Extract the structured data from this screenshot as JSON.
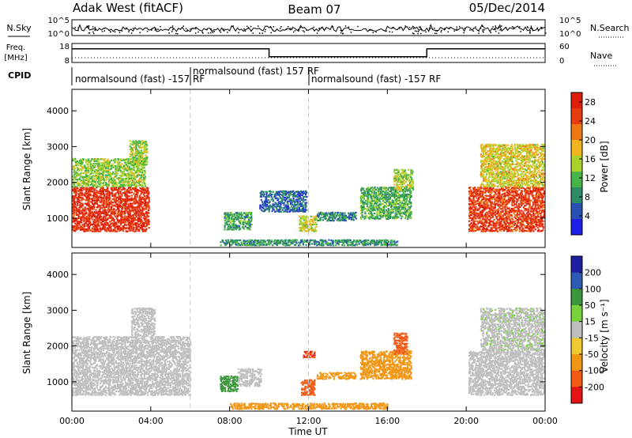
{
  "header": {
    "station": "Adak West (fitACF)",
    "beam": "Beam 07",
    "date": "05/Dec/2014"
  },
  "noise_panel": {
    "left_label": "N.Sky",
    "right_label": "N.Search",
    "left_ticks": [
      "10^5",
      "10^0"
    ],
    "right_ticks": [
      "10^5",
      "10^0"
    ]
  },
  "freq_panel": {
    "left_label_1": "Freq.",
    "left_label_2": "[MHz]",
    "right_label": "Nave",
    "left_ticks": [
      "18",
      "8"
    ],
    "right_ticks": [
      "60",
      "0"
    ],
    "freq_series": [
      {
        "from": "00:00",
        "to": "10:00",
        "level": 0.72
      },
      {
        "from": "10:00",
        "to": "18:00",
        "level": 0.3
      },
      {
        "from": "18:00",
        "to": "24:00",
        "level": 0.72
      }
    ]
  },
  "cpid_panel": {
    "label": "CPID",
    "segments": [
      {
        "text": "normalsound (fast) -157 RF",
        "row": "lower"
      },
      {
        "text": "normalsound (fast) 157 RF",
        "row": "upper"
      },
      {
        "text": "normalsound (fast) -157 RF",
        "row": "lower"
      }
    ]
  },
  "chart_data": [
    {
      "type": "heatmap",
      "title": "",
      "xlabel": "Time UT",
      "ylabel": "Slant Range [km]",
      "xlim": [
        "00:00",
        "24:00"
      ],
      "ylim": [
        180,
        4600
      ],
      "x_ticks": [
        "00:00",
        "04:00",
        "08:00",
        "12:00",
        "16:00",
        "20:00",
        "00:00"
      ],
      "y_ticks": [
        1000,
        2000,
        3000,
        4000
      ],
      "colorbar": {
        "label": "Power [dB]",
        "ticks": [
          "4",
          "8",
          "12",
          "16",
          "20",
          "24",
          "28"
        ],
        "range": [
          0,
          30
        ],
        "colors": [
          "#1e1ee6",
          "#2850b4",
          "#2d8c64",
          "#46b446",
          "#aad22d",
          "#f0b41e",
          "#f07814",
          "#e63c0f",
          "#dc1e0a"
        ]
      },
      "scatter_regions": [
        {
          "t0": 0.0,
          "t1": 3.9,
          "r0": 650,
          "r1": 1900,
          "power": 27
        },
        {
          "t0": 0.0,
          "t1": 3.7,
          "r0": 1900,
          "r1": 2700,
          "power": 14
        },
        {
          "t0": 2.9,
          "t1": 3.8,
          "r0": 2500,
          "r1": 3200,
          "power": 14
        },
        {
          "t0": 7.7,
          "t1": 9.1,
          "r0": 700,
          "r1": 1200,
          "power": 10
        },
        {
          "t0": 9.5,
          "t1": 11.9,
          "r0": 1200,
          "r1": 1800,
          "power": 6
        },
        {
          "t0": 11.5,
          "t1": 12.4,
          "r0": 650,
          "r1": 1100,
          "power": 16
        },
        {
          "t0": 12.4,
          "t1": 14.4,
          "r0": 950,
          "r1": 1200,
          "power": 8
        },
        {
          "t0": 14.6,
          "t1": 17.2,
          "r0": 1000,
          "r1": 1900,
          "power": 11
        },
        {
          "t0": 16.3,
          "t1": 17.3,
          "r0": 1800,
          "r1": 2400,
          "power": 15
        },
        {
          "t0": 20.1,
          "t1": 24.0,
          "r0": 650,
          "r1": 1900,
          "power": 26
        },
        {
          "t0": 20.7,
          "t1": 24.0,
          "r0": 1900,
          "r1": 3100,
          "power": 17
        },
        {
          "t0": 7.5,
          "t1": 16.5,
          "r0": 260,
          "r1": 430,
          "power": 9
        }
      ]
    },
    {
      "type": "heatmap",
      "title": "",
      "xlabel": "Time UT",
      "ylabel": "Slant Range [km]",
      "xlim": [
        "00:00",
        "24:00"
      ],
      "ylim": [
        180,
        4600
      ],
      "x_ticks": [
        "00:00",
        "04:00",
        "08:00",
        "12:00",
        "16:00",
        "20:00",
        "00:00"
      ],
      "y_ticks": [
        1000,
        2000,
        3000,
        4000
      ],
      "colorbar": {
        "label": "Velocity [m s⁻¹]",
        "ticks": [
          "200",
          "100",
          "50",
          "15",
          "-15",
          "-50",
          "-100",
          "-200"
        ],
        "colors": [
          "#1e1ea0",
          "#2d5ab4",
          "#3c963c",
          "#78d23c",
          "#bebebe",
          "#f0c832",
          "#f09614",
          "#f05a14",
          "#e61414"
        ]
      },
      "scatter_regions": [
        {
          "t0": 0.0,
          "t1": 6.0,
          "r0": 650,
          "r1": 2300,
          "velocity": 0
        },
        {
          "t0": 3.0,
          "t1": 4.2,
          "r0": 2300,
          "r1": 3100,
          "velocity": 0
        },
        {
          "t0": 7.5,
          "t1": 8.4,
          "r0": 750,
          "r1": 1200,
          "velocity": 40
        },
        {
          "t0": 8.4,
          "t1": 9.6,
          "r0": 900,
          "r1": 1400,
          "velocity": 0
        },
        {
          "t0": 11.6,
          "t1": 12.3,
          "r0": 650,
          "r1": 1100,
          "velocity": -80
        },
        {
          "t0": 12.4,
          "t1": 14.4,
          "r0": 1100,
          "r1": 1300,
          "velocity": -60
        },
        {
          "t0": 14.6,
          "t1": 17.2,
          "r0": 1100,
          "r1": 1900,
          "velocity": -70
        },
        {
          "t0": 16.3,
          "t1": 17.0,
          "r0": 1800,
          "r1": 2400,
          "velocity": -130
        },
        {
          "t0": 20.1,
          "t1": 24.0,
          "r0": 650,
          "r1": 1900,
          "velocity": 0
        },
        {
          "t0": 20.7,
          "t1": 24.0,
          "r0": 1900,
          "r1": 3100,
          "velocity": 5
        },
        {
          "t0": 8.0,
          "t1": 16.0,
          "r0": 260,
          "r1": 440,
          "velocity": -40
        },
        {
          "t0": 11.7,
          "t1": 12.3,
          "r0": 1700,
          "r1": 1900,
          "velocity": -150
        }
      ]
    }
  ],
  "dashed_markers_ut": [
    "06:00",
    "12:00"
  ]
}
